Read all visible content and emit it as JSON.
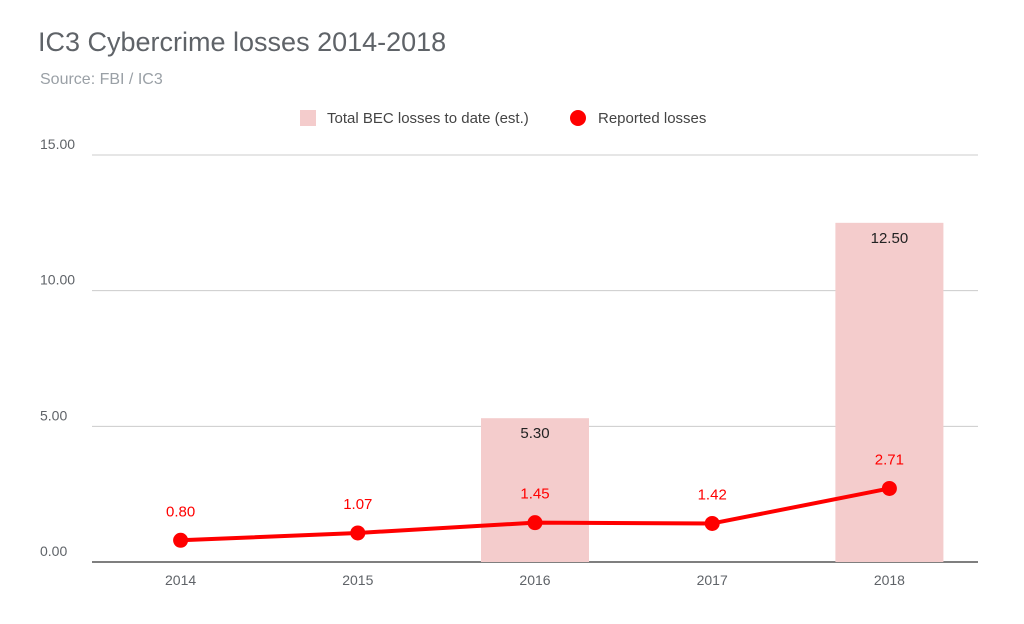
{
  "chart_data": {
    "type": "bar",
    "title": "IC3 Cybercrime losses 2014-2018",
    "subtitle": "Source: FBI / IC3",
    "categories": [
      "2014",
      "2015",
      "2016",
      "2017",
      "2018"
    ],
    "y_ticks": [
      "0.00",
      "5.00",
      "10.00",
      "15.00"
    ],
    "ylim": [
      0,
      15
    ],
    "grid": true,
    "legend_position": "top-center",
    "series": [
      {
        "name": "Total BEC losses to date (est.)",
        "type": "bar",
        "color": "#f4cccc",
        "values": [
          null,
          null,
          5.3,
          null,
          12.5
        ],
        "labels": [
          "",
          "",
          "5.30",
          "",
          "12.50"
        ]
      },
      {
        "name": "Reported losses",
        "type": "line",
        "color": "#ff0000",
        "values": [
          0.8,
          1.07,
          1.45,
          1.42,
          2.71
        ],
        "labels": [
          "0.80",
          "1.07",
          "1.45",
          "1.42",
          "2.71"
        ]
      }
    ]
  }
}
